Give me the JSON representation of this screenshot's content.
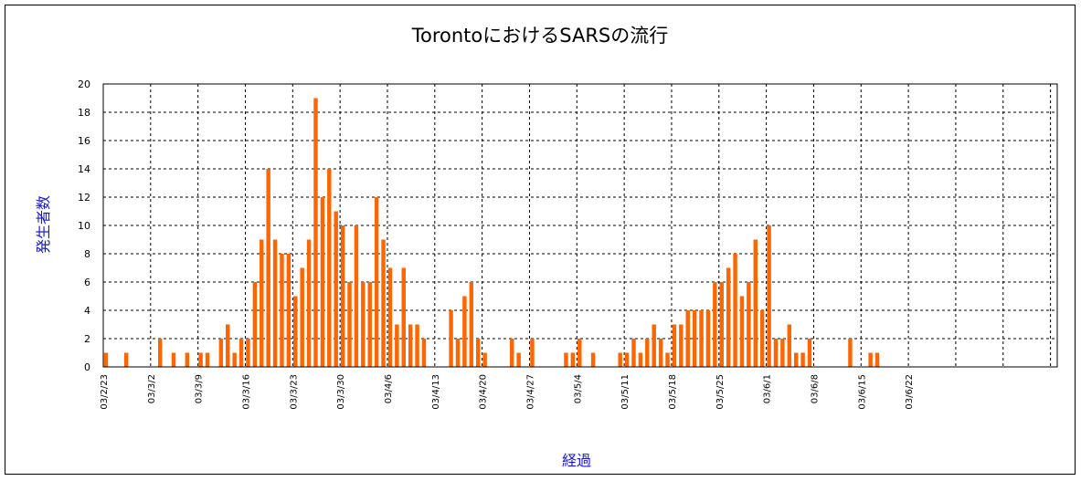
{
  "chart_data": {
    "type": "bar",
    "title": "TorontoにおけるSARSの流行",
    "xlabel": "経過",
    "ylabel": "発生者数",
    "ylim": [
      0,
      20
    ],
    "yticks": [
      0,
      2,
      4,
      6,
      8,
      10,
      12,
      14,
      16,
      18,
      20
    ],
    "grid": true,
    "legend": "none",
    "start_date": "2003-02-23",
    "day_count": 141,
    "xtick_labels": [
      "03/2/23",
      "03/3/2",
      "03/3/9",
      "03/3/16",
      "03/3/23",
      "03/3/30",
      "03/4/6",
      "03/4/13",
      "03/4/20",
      "03/4/27",
      "03/5/4",
      "03/5/11",
      "03/5/18",
      "03/5/25",
      "03/6/1",
      "03/6/8",
      "03/6/15",
      "03/6/22"
    ],
    "bar_color": "#ff6600",
    "series": [
      {
        "values": [
          1,
          0,
          0,
          1,
          0,
          0,
          0,
          0,
          2,
          0,
          1,
          0,
          1,
          0,
          1,
          1,
          0,
          2,
          3,
          1,
          2,
          2,
          6,
          9,
          14,
          9,
          8,
          8,
          5,
          7,
          9,
          19,
          12,
          14,
          11,
          10,
          6,
          10,
          6,
          6,
          12,
          9,
          7,
          3,
          7,
          3,
          3,
          2,
          0,
          0,
          0,
          4,
          2,
          5,
          6,
          2,
          1,
          0,
          0,
          0,
          2,
          1,
          0,
          2,
          0,
          0,
          0,
          0,
          1,
          1,
          2,
          0,
          1,
          0,
          0,
          0,
          1,
          1,
          2,
          1,
          2,
          3,
          2,
          1,
          3,
          3,
          4,
          4,
          4,
          4,
          6,
          6,
          7,
          8,
          5,
          6,
          9,
          4,
          10,
          2,
          2,
          3,
          1,
          1,
          2,
          0,
          0,
          0,
          0,
          0,
          2,
          0,
          0,
          1,
          1,
          0,
          0,
          0,
          0,
          0,
          0,
          0,
          0,
          0,
          0,
          0,
          0,
          0,
          0,
          0,
          0,
          0,
          0,
          0,
          0,
          0,
          0,
          0,
          0,
          0,
          0
        ]
      }
    ]
  }
}
